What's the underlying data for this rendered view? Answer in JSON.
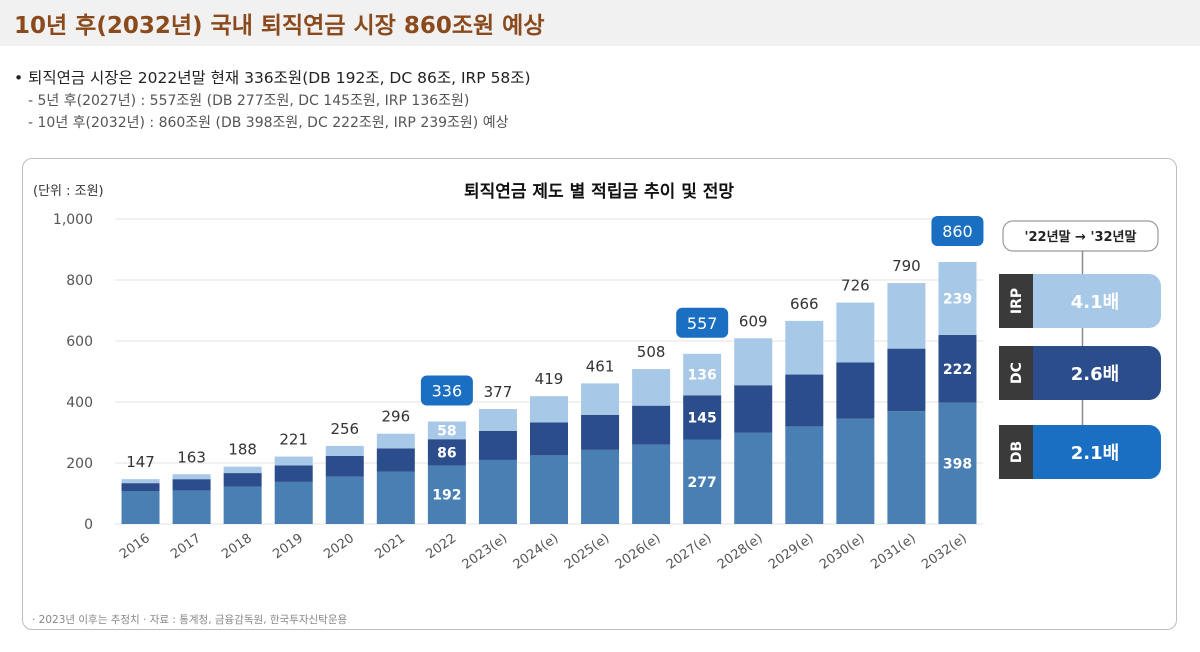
{
  "page": {
    "title": "10년 후(2032년) 국내 퇴직연금 시장 860조원 예상",
    "bullet_main": "• 퇴직연금 시장은 2022년말 현재 336조원(DB 192조, DC 86조, IRP 58조)",
    "bullet_sub_1": "-   5년 후(2027년) : 557조원 (DB 277조원, DC 145조원, IRP 136조원)",
    "bullet_sub_2": "- 10년 후(2032년) : 860조원 (DB 398조원, DC 222조원, IRP 239조원) 예상",
    "footnote": "· 2023년 이후는 추정치   · 자료 : 통계청, 금융감독원, 한국투자신탁운용"
  },
  "colors": {
    "title": "#8a4a1c",
    "db": "#4a7fb3",
    "dc": "#2c4d8c",
    "irp": "#a8c8e8",
    "highlight": "#1a6fc2",
    "dark_label": "#3a3a3a"
  },
  "chart_data": {
    "type": "bar",
    "stacked": true,
    "title": "퇴직연금 제도 별 적립금 추이 및 전망",
    "unit_label": "(단위 : 조원)",
    "ylim": [
      0,
      1000
    ],
    "yticks": [
      "0",
      "200",
      "400",
      "600",
      "800",
      "1,000"
    ],
    "grid": true,
    "categories": [
      "2016",
      "2017",
      "2018",
      "2019",
      "2020",
      "2021",
      "2022",
      "2023(e)",
      "2024(e)",
      "2025(e)",
      "2026(e)",
      "2027(e)",
      "2028(e)",
      "2029(e)",
      "2030(e)",
      "2031(e)",
      "2032(e)"
    ],
    "series": [
      {
        "name": "DB",
        "values": [
          107,
          110,
          122,
          138,
          155,
          172,
          192,
          210,
          225,
          243,
          260,
          277,
          300,
          320,
          345,
          370,
          398
        ]
      },
      {
        "name": "DC",
        "values": [
          27,
          37,
          45,
          54,
          68,
          76,
          86,
          95,
          108,
          115,
          128,
          145,
          155,
          170,
          185,
          205,
          222
        ]
      },
      {
        "name": "IRP",
        "values": [
          13,
          16,
          21,
          29,
          33,
          48,
          58,
          72,
          86,
          103,
          120,
          136,
          154,
          176,
          196,
          215,
          239
        ]
      }
    ],
    "totals": [
      "147",
      "163",
      "188",
      "221",
      "256",
      "296",
      "336",
      "377",
      "419",
      "461",
      "508",
      "557",
      "609",
      "666",
      "726",
      "790",
      "860"
    ],
    "highlighted": [
      "2022",
      "2027(e)",
      "2032(e)"
    ],
    "segment_labels": {
      "2022": [
        "192",
        "86",
        "58"
      ],
      "2027(e)": [
        "277",
        "145",
        "136"
      ],
      "2032(e)": [
        "398",
        "222",
        "239"
      ]
    },
    "growth_panel": {
      "header": "'22년말 → '32년말",
      "items": [
        {
          "name": "IRP",
          "value": "4.1배"
        },
        {
          "name": "DC",
          "value": "2.6배"
        },
        {
          "name": "DB",
          "value": "2.1배"
        }
      ]
    }
  }
}
